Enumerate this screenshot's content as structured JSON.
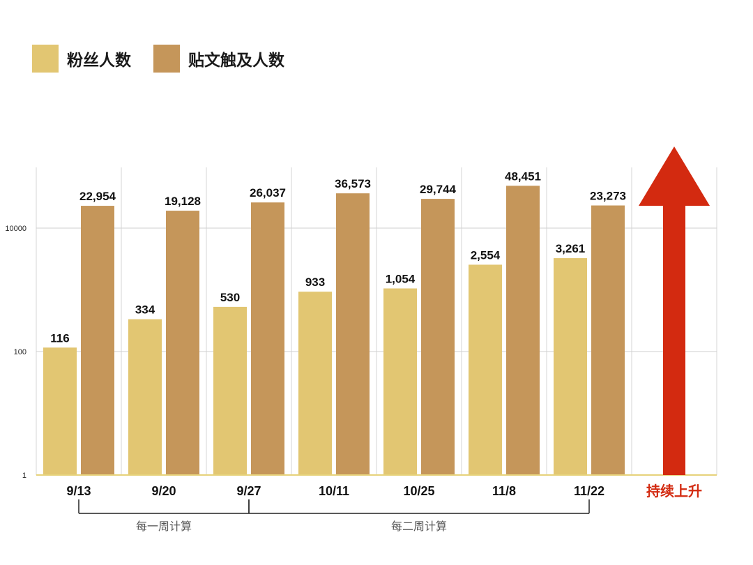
{
  "chart_data": {
    "type": "bar",
    "y_scale": "log",
    "ylim": [
      1,
      100000
    ],
    "yticks": [
      {
        "value": 1,
        "label": "1"
      },
      {
        "value": 100,
        "label": "100"
      },
      {
        "value": 10000,
        "label": "10000"
      }
    ],
    "categories": [
      "9/13",
      "9/20",
      "9/27",
      "10/11",
      "10/25",
      "11/8",
      "11/22"
    ],
    "series": [
      {
        "name": "粉丝人数",
        "color": "#e2c672",
        "values": [
          116,
          334,
          530,
          933,
          1054,
          2554,
          3261
        ],
        "labels": [
          "116",
          "334",
          "530",
          "933",
          "1,054",
          "2,554",
          "3,261"
        ]
      },
      {
        "name": "贴文触及人数",
        "color": "#c5965a",
        "values": [
          22954,
          19128,
          26037,
          36573,
          29744,
          48451,
          23273
        ],
        "labels": [
          "22,954",
          "19,128",
          "26,037",
          "36,573",
          "29,744",
          "48,451",
          "23,273"
        ]
      }
    ],
    "extra_column": {
      "label": "持续上升",
      "arrow_color": "#d32a10"
    },
    "periods": [
      {
        "label": "每一周计算",
        "from": "9/13",
        "to": "9/27"
      },
      {
        "label": "每二周计算",
        "from": "9/27",
        "to": "11/22"
      }
    ],
    "grid": true,
    "legend_position": "top-left"
  }
}
